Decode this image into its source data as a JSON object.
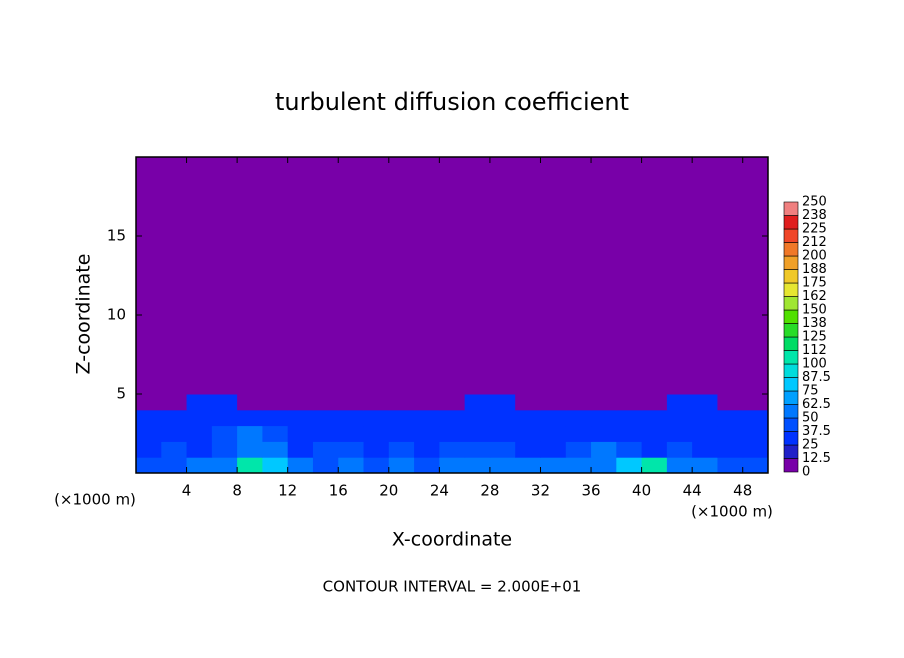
{
  "chart_data": {
    "type": "heatmap",
    "title": "turbulent diffusion coefficient",
    "xlabel": "X-coordinate",
    "ylabel": "Z-coordinate",
    "x_unit_labels": [
      "(×1000 m)",
      "(×1000 m)"
    ],
    "footer": "CONTOUR INTERVAL = 2.000E+01",
    "xlim": [
      0,
      50
    ],
    "ylim": [
      0,
      20
    ],
    "xticks": [
      4,
      8,
      12,
      16,
      20,
      24,
      28,
      32,
      36,
      40,
      44,
      48
    ],
    "yticks": [
      5,
      10,
      15
    ],
    "x": [
      0,
      2,
      4,
      6,
      8,
      10,
      12,
      14,
      16,
      18,
      20,
      22,
      24,
      26,
      28,
      30,
      32,
      34,
      36,
      38,
      40,
      42,
      44,
      46,
      48,
      50
    ],
    "z": [
      0,
      1,
      2,
      3,
      4,
      5,
      20
    ],
    "values": [
      [
        40,
        45,
        50,
        55,
        100,
        75,
        50,
        45,
        50,
        45,
        50,
        45,
        50,
        55,
        62,
        62,
        60,
        55,
        62,
        75,
        100,
        55,
        50,
        45,
        40
      ],
      [
        35,
        40,
        37,
        40,
        62,
        50,
        37,
        40,
        45,
        37,
        40,
        37,
        40,
        45,
        40,
        37,
        35,
        40,
        50,
        40,
        37,
        40,
        37,
        37,
        30
      ],
      [
        30,
        35,
        37,
        40,
        50,
        40,
        37,
        37,
        37,
        30,
        37,
        37,
        37,
        37,
        37,
        37,
        37,
        37,
        37,
        37,
        37,
        30,
        37,
        37,
        25
      ],
      [
        25,
        30,
        37,
        30,
        30,
        30,
        30,
        30,
        30,
        25,
        25,
        30,
        30,
        30,
        30,
        30,
        25,
        30,
        30,
        25,
        25,
        30,
        30,
        30,
        25
      ],
      [
        0,
        0,
        25,
        25,
        0,
        0,
        0,
        0,
        0,
        12,
        0,
        0,
        0,
        25,
        25,
        0,
        0,
        0,
        0,
        0,
        0,
        25,
        25,
        12,
        0
      ],
      [
        0,
        0,
        0,
        0,
        0,
        0,
        0,
        0,
        0,
        0,
        0,
        0,
        0,
        0,
        0,
        0,
        0,
        0,
        0,
        0,
        0,
        0,
        0,
        0,
        0
      ]
    ],
    "colorbar": {
      "levels": [
        0,
        12.5,
        25,
        37.5,
        50,
        62.5,
        75,
        87.5,
        100,
        112,
        125,
        138,
        150,
        162,
        175,
        188,
        200,
        212,
        225,
        238,
        250
      ],
      "colors": [
        "#7800a8",
        "#2020c8",
        "#0032ff",
        "#0050ff",
        "#0078ff",
        "#00a0ff",
        "#00c8ff",
        "#00dcdc",
        "#00e6aa",
        "#00dc64",
        "#28dc28",
        "#50e000",
        "#a0e632",
        "#e6e632",
        "#f0c828",
        "#f0a028",
        "#f07828",
        "#f04628",
        "#e01e1e",
        "#f08080"
      ]
    }
  }
}
